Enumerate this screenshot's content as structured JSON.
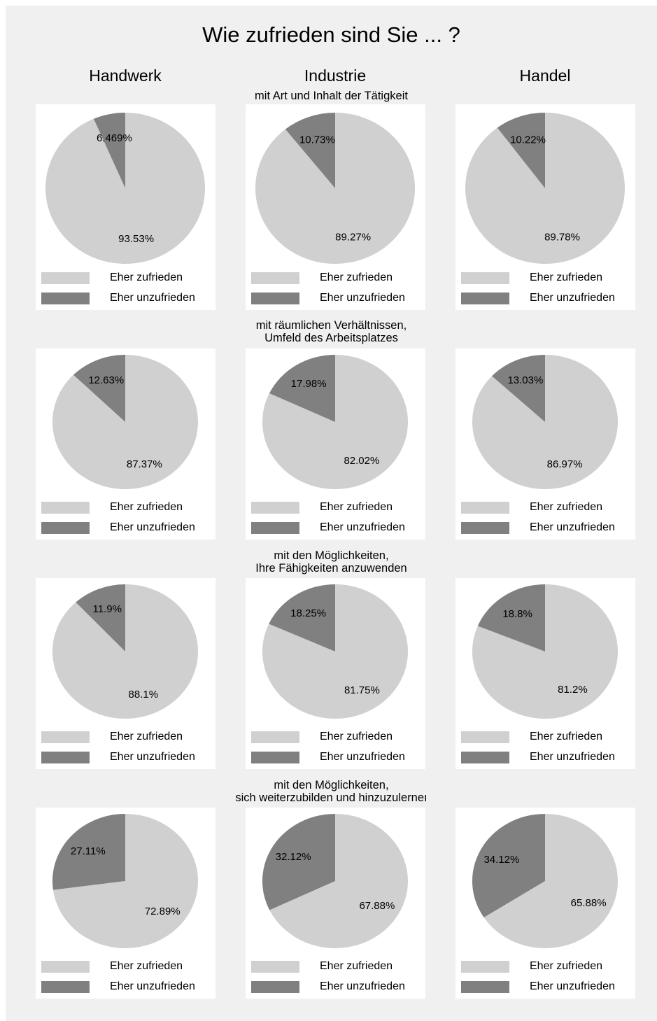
{
  "chart_data": {
    "type": "pie",
    "title": "Wie zufrieden sind Sie ... ?",
    "columns": [
      "Handwerk",
      "Industrie",
      "Handel"
    ],
    "legend": [
      "Eher zufrieden",
      "Eher unzufrieden"
    ],
    "colors": {
      "zufrieden": "#d0d0d0",
      "unzufrieden": "#808080"
    },
    "rows": [
      {
        "label": [
          "mit Art und Inhalt der Tätigkeit"
        ],
        "values": [
          [
            93.53,
            6.469
          ],
          [
            89.27,
            10.73
          ],
          [
            89.78,
            10.22
          ]
        ],
        "value_labels": [
          [
            "93.53%",
            "6.469%"
          ],
          [
            "89.27%",
            "10.73%"
          ],
          [
            "89.78%",
            "10.22%"
          ]
        ]
      },
      {
        "label": [
          "mit räumlichen Verhältnissen,",
          "Umfeld des Arbeitsplatzes"
        ],
        "values": [
          [
            87.37,
            12.63
          ],
          [
            82.02,
            17.98
          ],
          [
            86.97,
            13.03
          ]
        ],
        "value_labels": [
          [
            "87.37%",
            "12.63%"
          ],
          [
            "82.02%",
            "17.98%"
          ],
          [
            "86.97%",
            "13.03%"
          ]
        ]
      },
      {
        "label": [
          "mit den Möglichkeiten,",
          "Ihre Fähigkeiten anzuwenden"
        ],
        "values": [
          [
            88.1,
            11.9
          ],
          [
            81.75,
            18.25
          ],
          [
            81.2,
            18.8
          ]
        ],
        "value_labels": [
          [
            "88.1%",
            "11.9%"
          ],
          [
            "81.75%",
            "18.25%"
          ],
          [
            "81.2%",
            "18.8%"
          ]
        ]
      },
      {
        "label": [
          "mit den Möglichkeiten,",
          "sich weiterzubilden und hinzuzulerneı"
        ],
        "values": [
          [
            72.89,
            27.11
          ],
          [
            67.88,
            32.12
          ],
          [
            65.88,
            34.12
          ]
        ],
        "value_labels": [
          [
            "72.89%",
            "27.11%"
          ],
          [
            "67.88%",
            "32.12%"
          ],
          [
            "65.88%",
            "34.12%"
          ]
        ]
      }
    ]
  }
}
